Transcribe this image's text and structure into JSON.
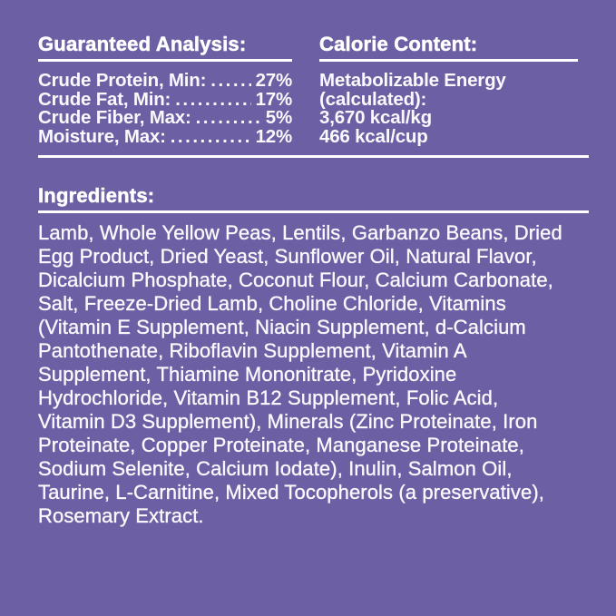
{
  "colors": {
    "background": "#6C5FA3",
    "text": "#FFFFFF"
  },
  "guaranteed_analysis": {
    "title": "Guaranteed Analysis:",
    "rows": [
      {
        "label": "Crude Protein, Min:",
        "value": "27%"
      },
      {
        "label": "Crude Fat, Min:",
        "value": "17%"
      },
      {
        "label": "Crude Fiber, Max:",
        "value": "5%"
      },
      {
        "label": "Moisture, Max:",
        "value": "12%"
      }
    ]
  },
  "calorie_content": {
    "title": "Calorie Content:",
    "lines": [
      "Metabolizable Energy",
      "(calculated):",
      "3,670 kcal/kg",
      "466 kcal/cup"
    ]
  },
  "ingredients": {
    "title": "Ingredients:",
    "text": "Lamb, Whole Yellow Peas, Lentils, Garbanzo Beans, Dried\nEgg Product, Dried Yeast, Sunflower Oil, Natural Flavor,\nDicalcium Phosphate, Coconut Flour, Calcium Carbonate,\nSalt, Freeze-Dried Lamb, Choline Chloride, Vitamins\n(Vitamin E Supplement, Niacin Supplement, d-Calcium\nPantothenate, Riboflavin Supplement, Vitamin A\nSupplement, Thiamine Mononitrate, Pyridoxine\nHydrochloride, Vitamin B12 Supplement, Folic Acid,\nVitamin D3 Supplement), Minerals (Zinc Proteinate, Iron\nProteinate, Copper Proteinate, Manganese Proteinate,\nSodium Selenite, Calcium Iodate), Inulin, Salmon Oil,\nTaurine, L-Carnitine, Mixed Tocopherols (a preservative),\nRosemary Extract."
  }
}
